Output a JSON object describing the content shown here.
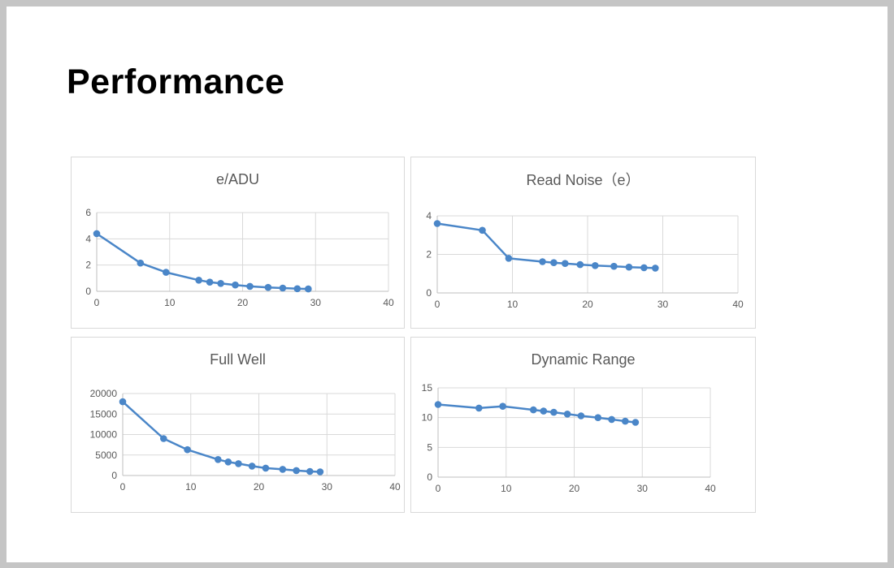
{
  "slide": {
    "title": "Performance"
  },
  "colors": {
    "series": "#4A86C8",
    "gridline": "#D9D9D9",
    "axis": "#BFBFBF",
    "tick_text": "#595959",
    "title_text": "#595959",
    "card_border": "#D9D9D9",
    "frame": "#C5C5C5"
  },
  "chart_data": [
    {
      "type": "line",
      "title": "e/ADU",
      "x": [
        0,
        6,
        9.5,
        14,
        15.5,
        17,
        19,
        21,
        23.5,
        25.5,
        27.5,
        29
      ],
      "values": [
        4.4,
        2.15,
        1.45,
        0.85,
        0.7,
        0.6,
        0.48,
        0.38,
        0.3,
        0.25,
        0.2,
        0.18
      ],
      "xlim": [
        0,
        40
      ],
      "ylim": [
        0,
        6
      ],
      "xticks": [
        0,
        10,
        20,
        30,
        40
      ],
      "yticks": [
        0,
        2,
        4,
        6
      ],
      "xlabel": "",
      "ylabel": "",
      "legend": "none",
      "grid": true,
      "marker": "circle"
    },
    {
      "type": "line",
      "title": "Read Noise（e）",
      "x": [
        0,
        6,
        9.5,
        14,
        15.5,
        17,
        19,
        21,
        23.5,
        25.5,
        27.5,
        29
      ],
      "values": [
        3.6,
        3.25,
        1.8,
        1.62,
        1.57,
        1.53,
        1.47,
        1.42,
        1.38,
        1.34,
        1.31,
        1.29
      ],
      "xlim": [
        0,
        40
      ],
      "ylim": [
        0,
        4
      ],
      "xticks": [
        0,
        10,
        20,
        30,
        40
      ],
      "yticks": [
        0,
        2,
        4
      ],
      "xlabel": "",
      "ylabel": "",
      "legend": "none",
      "grid": true,
      "marker": "circle"
    },
    {
      "type": "line",
      "title": "Full Well",
      "x": [
        0,
        6,
        9.5,
        14,
        15.5,
        17,
        19,
        21,
        23.5,
        25.5,
        27.5,
        29
      ],
      "values": [
        18000,
        9000,
        6300,
        3900,
        3300,
        2900,
        2300,
        1800,
        1500,
        1200,
        1000,
        900
      ],
      "xlim": [
        0,
        40
      ],
      "ylim": [
        0,
        20000
      ],
      "xticks": [
        0,
        10,
        20,
        30,
        40
      ],
      "yticks": [
        0,
        5000,
        10000,
        15000,
        20000
      ],
      "xlabel": "",
      "ylabel": "",
      "legend": "none",
      "grid": true,
      "marker": "circle"
    },
    {
      "type": "line",
      "title": "Dynamic Range",
      "x": [
        0,
        6,
        9.5,
        14,
        15.5,
        17,
        19,
        21,
        23.5,
        25.5,
        27.5,
        29
      ],
      "values": [
        12.2,
        11.6,
        11.9,
        11.3,
        11.1,
        10.9,
        10.6,
        10.3,
        10.0,
        9.7,
        9.4,
        9.2
      ],
      "xlim": [
        0,
        40
      ],
      "ylim": [
        0,
        15
      ],
      "xticks": [
        0,
        10,
        20,
        30,
        40
      ],
      "yticks": [
        0,
        5,
        10,
        15
      ],
      "xlabel": "",
      "ylabel": "",
      "legend": "none",
      "grid": true,
      "marker": "circle"
    }
  ]
}
